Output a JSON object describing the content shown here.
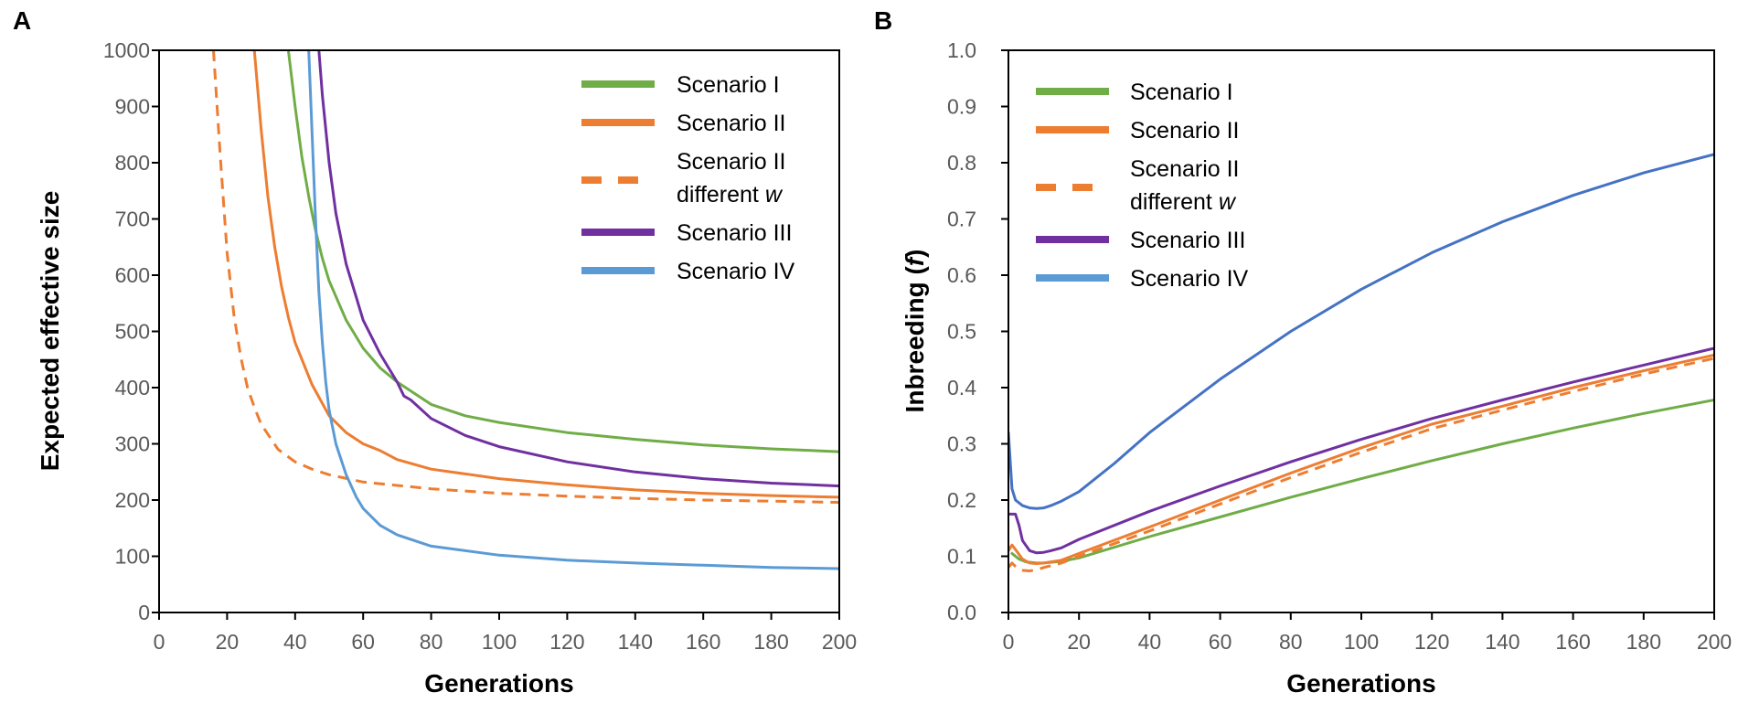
{
  "chart_data": [
    {
      "type": "line",
      "panel_label": "A",
      "title": "",
      "xlabel": "Generations",
      "ylabel": "Expected effective size",
      "xlim": [
        0,
        200
      ],
      "ylim": [
        0,
        1000
      ],
      "xticks": [
        0,
        20,
        40,
        60,
        80,
        100,
        120,
        140,
        160,
        180,
        200
      ],
      "yticks": [
        0,
        100,
        200,
        300,
        400,
        500,
        600,
        700,
        800,
        900,
        1000
      ],
      "legend_position": "top-right",
      "series": [
        {
          "name": "Scenario I",
          "name_italic": "",
          "color": "#70AD47",
          "dash": false,
          "x": [
            38,
            40,
            42,
            44,
            46,
            48,
            50,
            55,
            60,
            65,
            70,
            80,
            90,
            100,
            120,
            140,
            160,
            180,
            200
          ],
          "y": [
            1000,
            900,
            810,
            740,
            680,
            630,
            590,
            520,
            470,
            435,
            410,
            370,
            350,
            338,
            320,
            308,
            298,
            291,
            286
          ]
        },
        {
          "name": "Scenario II",
          "name_italic": "",
          "color": "#ED7D31",
          "dash": false,
          "x": [
            28,
            30,
            32,
            34,
            36,
            38,
            40,
            45,
            50,
            55,
            60,
            65,
            70,
            80,
            100,
            120,
            140,
            160,
            180,
            200
          ],
          "y": [
            1000,
            860,
            740,
            650,
            580,
            525,
            480,
            405,
            350,
            320,
            300,
            288,
            272,
            255,
            238,
            227,
            218,
            212,
            208,
            205
          ]
        },
        {
          "name": "Scenario II",
          "name_italic": "different w",
          "color": "#ED7D31",
          "dash": true,
          "x": [
            16,
            18,
            20,
            22,
            24,
            26,
            28,
            30,
            35,
            40,
            45,
            50,
            60,
            80,
            100,
            120,
            140,
            160,
            180,
            200
          ],
          "y": [
            1000,
            810,
            640,
            530,
            455,
            400,
            365,
            335,
            290,
            268,
            255,
            245,
            232,
            220,
            212,
            207,
            203,
            200,
            198,
            196
          ]
        },
        {
          "name": "Scenario III",
          "name_italic": "",
          "color": "#7030A0",
          "dash": false,
          "x": [
            47,
            48,
            50,
            52,
            55,
            58,
            60,
            65,
            70,
            72,
            74,
            80,
            90,
            100,
            120,
            140,
            160,
            180,
            200
          ],
          "y": [
            1000,
            920,
            800,
            710,
            620,
            560,
            520,
            460,
            410,
            385,
            378,
            345,
            315,
            295,
            268,
            250,
            238,
            230,
            225
          ]
        },
        {
          "name": "Scenario IV",
          "name_italic": "",
          "color": "#5B9BD5",
          "dash": false,
          "x": [
            44,
            45,
            46,
            47,
            48,
            49,
            50,
            52,
            55,
            58,
            60,
            65,
            70,
            80,
            100,
            120,
            140,
            160,
            180,
            200
          ],
          "y": [
            1000,
            850,
            700,
            570,
            480,
            410,
            360,
            300,
            245,
            205,
            185,
            155,
            138,
            118,
            102,
            93,
            88,
            84,
            80,
            78
          ]
        }
      ]
    },
    {
      "type": "line",
      "panel_label": "B",
      "title": "",
      "xlabel": "Generations",
      "ylabel": "Inbreeding (",
      "ylabel_italic": "f",
      "ylabel_end": ")",
      "xlim": [
        0,
        200
      ],
      "ylim": [
        0,
        1.0
      ],
      "xticks": [
        0,
        20,
        40,
        60,
        80,
        100,
        120,
        140,
        160,
        180,
        200
      ],
      "yticks": [
        "0.0",
        "0.1",
        "0.2",
        "0.3",
        "0.4",
        "0.5",
        "0.6",
        "0.7",
        "0.8",
        "0.9",
        "1.0"
      ],
      "legend_position": "top-left",
      "series": [
        {
          "name": "Scenario I",
          "name_italic": "",
          "color": "#70AD47",
          "dash": false,
          "x": [
            1,
            3,
            5,
            8,
            10,
            15,
            20,
            40,
            60,
            80,
            100,
            120,
            140,
            160,
            180,
            200
          ],
          "y": [
            0.105,
            0.095,
            0.09,
            0.088,
            0.088,
            0.091,
            0.097,
            0.135,
            0.17,
            0.205,
            0.238,
            0.27,
            0.3,
            0.328,
            0.354,
            0.378
          ]
        },
        {
          "name": "Scenario II",
          "name_italic": "",
          "color": "#ED7D31",
          "dash": false,
          "x": [
            0,
            1,
            2,
            4,
            6,
            8,
            10,
            15,
            20,
            40,
            60,
            80,
            100,
            120,
            140,
            160,
            180,
            200
          ],
          "y": [
            0.11,
            0.12,
            0.112,
            0.095,
            0.088,
            0.087,
            0.088,
            0.093,
            0.105,
            0.152,
            0.2,
            0.248,
            0.293,
            0.335,
            0.367,
            0.4,
            0.43,
            0.458
          ]
        },
        {
          "name": "Scenario II",
          "name_italic": "different w",
          "color": "#ED7D31",
          "dash": true,
          "x": [
            0,
            1,
            2,
            3,
            4,
            6,
            8,
            10,
            15,
            20,
            40,
            60,
            80,
            100,
            120,
            140,
            160,
            180,
            200
          ],
          "y": [
            0.08,
            0.088,
            0.082,
            0.077,
            0.075,
            0.074,
            0.076,
            0.08,
            0.088,
            0.1,
            0.145,
            0.193,
            0.24,
            0.285,
            0.327,
            0.36,
            0.393,
            0.424,
            0.452
          ]
        },
        {
          "name": "Scenario III",
          "name_italic": "",
          "color": "#7030A0",
          "dash": false,
          "x": [
            0,
            2,
            3,
            4,
            6,
            8,
            10,
            12,
            15,
            20,
            40,
            60,
            80,
            100,
            120,
            140,
            160,
            180,
            200
          ],
          "y": [
            0.175,
            0.175,
            0.155,
            0.128,
            0.11,
            0.106,
            0.107,
            0.11,
            0.115,
            0.13,
            0.18,
            0.225,
            0.268,
            0.308,
            0.345,
            0.378,
            0.41,
            0.44,
            0.47
          ]
        },
        {
          "name": "Scenario IV",
          "name_italic": "",
          "color": "#4472C4",
          "legend_color": "#5B9BD5",
          "dash": false,
          "x": [
            0,
            1,
            2,
            4,
            6,
            8,
            10,
            12,
            15,
            20,
            30,
            40,
            60,
            80,
            100,
            120,
            140,
            160,
            180,
            200
          ],
          "y": [
            0.32,
            0.22,
            0.2,
            0.19,
            0.186,
            0.185,
            0.186,
            0.19,
            0.198,
            0.215,
            0.265,
            0.32,
            0.415,
            0.5,
            0.575,
            0.64,
            0.695,
            0.742,
            0.782,
            0.815
          ]
        }
      ]
    }
  ]
}
